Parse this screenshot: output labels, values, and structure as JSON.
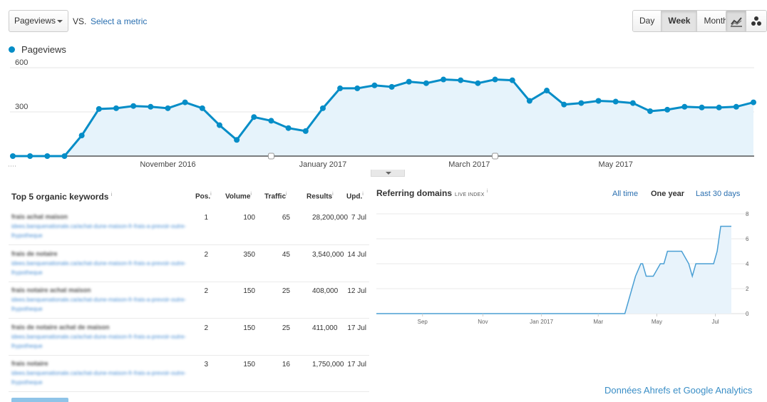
{
  "toolbar": {
    "metric_select": "Pageviews",
    "vs_label": "VS.",
    "compare_link": "Select a metric",
    "periods": [
      "Day",
      "Week",
      "Month"
    ],
    "active_period": "Week",
    "chart_view_icons": [
      "line-chart-icon",
      "motion-chart-icon"
    ]
  },
  "legend": {
    "series": "Pageviews",
    "color": "#058dc7"
  },
  "chart_data": [
    {
      "type": "line",
      "x_tick_labels": [
        "November 2016",
        "January 2017",
        "March 2017",
        "May 2017"
      ],
      "y_tick_labels": [
        "600",
        "300"
      ],
      "ylim": [
        0,
        600
      ],
      "grid": true,
      "series": [
        {
          "name": "Pageviews",
          "color": "#058dc7",
          "values": [
            0,
            0,
            0,
            0,
            140,
            320,
            325,
            340,
            335,
            325,
            365,
            325,
            210,
            110,
            265,
            240,
            190,
            170,
            325,
            460,
            460,
            480,
            470,
            505,
            495,
            520,
            515,
            495,
            520,
            515,
            375,
            445,
            350,
            360,
            375,
            370,
            360,
            305,
            315,
            335,
            330,
            330,
            335,
            365
          ]
        }
      ]
    },
    {
      "type": "area",
      "title": "Referring domains",
      "x_tick_labels": [
        "Sep",
        "Nov",
        "Jan 2017",
        "Mar",
        "May",
        "Jul"
      ],
      "y_tick_labels": [
        "8",
        "6",
        "4",
        "2",
        "0"
      ],
      "ylim": [
        0,
        8
      ],
      "grid": true,
      "series": [
        {
          "color": "#4a9fd4",
          "x": [
            0,
            0.7,
            0.72,
            0.73,
            0.745,
            0.75,
            0.76,
            0.77,
            0.78,
            0.8,
            0.81,
            0.82,
            0.83,
            0.84,
            0.86,
            0.88,
            0.89,
            0.9,
            0.91,
            0.93,
            0.95,
            0.96,
            0.97,
            0.98,
            1.0
          ],
          "values": [
            0,
            0,
            2,
            3,
            4,
            4,
            3,
            3,
            3,
            4,
            4,
            5,
            5,
            5,
            5,
            4,
            3,
            4,
            4,
            4,
            4,
            5,
            7,
            7,
            7
          ]
        }
      ]
    }
  ],
  "keywords": {
    "title": "Top 5 organic keywords",
    "headers": [
      "Pos.",
      "Volume",
      "Traffic",
      "Results",
      "Upd."
    ],
    "rows": [
      {
        "keyword": "frais achat maison",
        "pos": "1",
        "volume": "100",
        "traffic": "65",
        "results": "28,200,000",
        "upd": "7 Jul"
      },
      {
        "keyword": "frais de notaire",
        "pos": "2",
        "volume": "350",
        "traffic": "45",
        "results": "3,540,000",
        "upd": "14 Jul"
      },
      {
        "keyword": "frais notaire achat maison",
        "pos": "2",
        "volume": "150",
        "traffic": "25",
        "results": "408,000",
        "upd": "12 Jul"
      },
      {
        "keyword": "frais de notaire achat de maison",
        "pos": "2",
        "volume": "150",
        "traffic": "25",
        "results": "411,000",
        "upd": "17 Jul"
      },
      {
        "keyword": "frais notaire",
        "pos": "3",
        "volume": "150",
        "traffic": "16",
        "results": "1,750,000",
        "upd": "17 Jul"
      }
    ],
    "url_text": "idees.banquenationale.ca/achat-dune-maison-fr-frais-a-prevoir-outre-lhypotheque"
  },
  "referring": {
    "title": "Referring domains",
    "badge": "LIVE INDEX",
    "ranges": [
      "All time",
      "One year",
      "Last 30 days"
    ],
    "active_range": "One year"
  },
  "credit": "Données Ahrefs et Google Analytics"
}
